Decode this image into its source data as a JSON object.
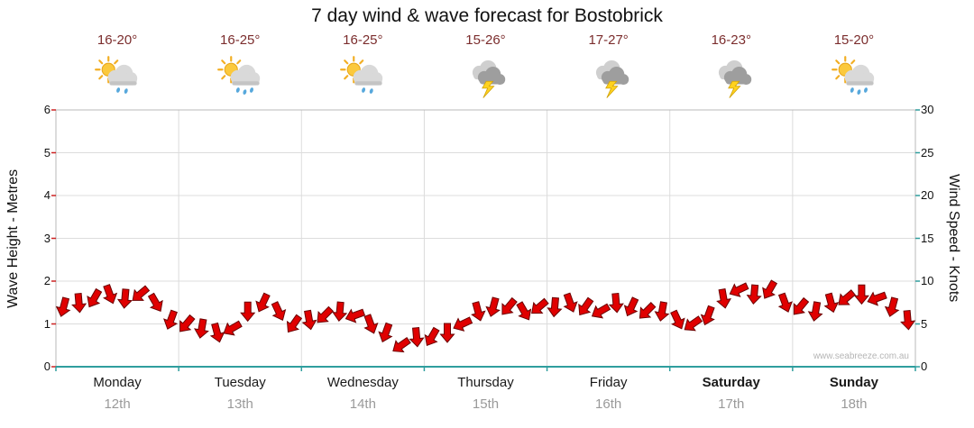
{
  "title": "7 day wind & wave forecast for Bostobrick",
  "watermark": "www.seabreeze.com.au",
  "colors": {
    "arrow_fill": "#e00000",
    "arrow_stroke": "#6b0000",
    "temp_text": "#7b2d2d",
    "grid": "#dcdcdc",
    "plot_border": "#b8b8b8",
    "left_tick": "#cc2222",
    "teal": "#2f9e9e",
    "date_text": "#9a9a9a"
  },
  "axes": {
    "left_label": "Wave Height - Metres",
    "right_label": "Wind Speed - Knots",
    "left_ticks": [
      "0",
      "1",
      "2",
      "3",
      "4",
      "5",
      "6"
    ],
    "right_ticks": [
      "0",
      "5",
      "10",
      "15",
      "20",
      "25",
      "30"
    ]
  },
  "days": [
    {
      "name": "Monday",
      "date": "12th",
      "temp": "16-20°",
      "icon": "sun-cloud-rain",
      "bold": false
    },
    {
      "name": "Tuesday",
      "date": "13th",
      "temp": "16-25°",
      "icon": "sun-cloud-heavy-rain",
      "bold": false
    },
    {
      "name": "Wednesday",
      "date": "14th",
      "temp": "16-25°",
      "icon": "sun-cloud-rain",
      "bold": false
    },
    {
      "name": "Thursday",
      "date": "15th",
      "temp": "15-26°",
      "icon": "storm",
      "bold": false
    },
    {
      "name": "Friday",
      "date": "16th",
      "temp": "17-27°",
      "icon": "storm",
      "bold": false
    },
    {
      "name": "Saturday",
      "date": "17th",
      "temp": "16-23°",
      "icon": "storm",
      "bold": true
    },
    {
      "name": "Sunday",
      "date": "18th",
      "temp": "15-20°",
      "icon": "sun-cloud-heavy-rain",
      "bold": true
    }
  ],
  "chart_data": {
    "type": "line",
    "title": "7 day wind & wave forecast for Bostobrick",
    "ylabel_left": "Wave Height - Metres",
    "ylabel_right": "Wind Speed - Knots",
    "ylim_left": [
      0,
      6
    ],
    "ylim_right": [
      0,
      30
    ],
    "grid": true,
    "x_categories": [
      "Monday 12th",
      "Tuesday 13th",
      "Wednesday 14th",
      "Thursday 15th",
      "Friday 16th",
      "Saturday 17th",
      "Sunday 18th"
    ],
    "points_per_day": 8,
    "series": [
      {
        "name": "Wind Speed (knots)",
        "values": [
          7,
          7.5,
          8,
          8.5,
          8,
          8.5,
          7.5,
          5.5,
          5,
          4.5,
          4,
          4.5,
          6.5,
          7.5,
          6.5,
          5,
          5.5,
          6,
          6.5,
          6,
          5,
          4,
          2.5,
          3.5,
          3.5,
          4,
          5,
          6.5,
          7,
          7,
          6.5,
          7,
          7,
          7.5,
          7,
          6.5,
          7.5,
          7,
          6.5,
          6.5,
          5.5,
          5,
          6,
          8,
          9,
          8.5,
          9,
          7.5,
          7,
          6.5,
          7.5,
          8,
          8.5,
          8,
          7,
          5.5
        ]
      }
    ],
    "wind_dir_deg": [
      105,
      85,
      120,
      70,
      95,
      140,
      60,
      110,
      130,
      100,
      75,
      150,
      90,
      115,
      65,
      125,
      80,
      135,
      95,
      160,
      70,
      110,
      145,
      85,
      120,
      90,
      155,
      75,
      105,
      130,
      60,
      140,
      95,
      70,
      125,
      150,
      85,
      115,
      135,
      100,
      65,
      145,
      110,
      80,
      155,
      95,
      120,
      70,
      130,
      100,
      75,
      140,
      90,
      160,
      105,
      85
    ]
  }
}
